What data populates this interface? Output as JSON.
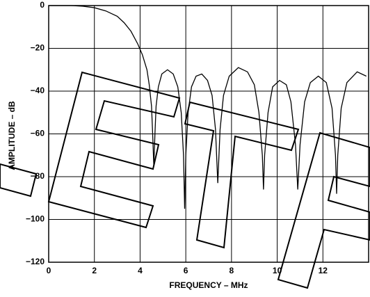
{
  "chart_data": {
    "type": "line",
    "x_label": "FREQUENCY – MHz",
    "y_label": "AMPLITUDE – dB",
    "xlim": [
      0,
      14
    ],
    "ylim": [
      -120,
      0
    ],
    "xticks": [
      0,
      2,
      4,
      6,
      8,
      10,
      12
    ],
    "yticks": [
      {
        "value": -120,
        "label": "−120"
      },
      {
        "value": -100,
        "label": "−100"
      },
      {
        "value": -80,
        "label": "−80"
      },
      {
        "value": -60,
        "label": "−60"
      },
      {
        "value": -40,
        "label": "−40"
      },
      {
        "value": -20,
        "label": "−20"
      },
      0
    ],
    "grid": true,
    "series": [
      {
        "color": "#000000",
        "x": [
          0,
          0.5,
          1.0,
          1.5,
          2.0,
          2.5,
          3.0,
          3.3,
          3.6,
          3.9,
          4.1,
          4.3,
          4.4,
          4.5,
          4.55,
          4.6,
          4.65,
          4.7,
          4.8,
          4.95,
          5.2,
          5.45,
          5.65,
          5.8,
          5.9,
          5.95,
          6.0,
          6.1,
          6.25,
          6.45,
          6.7,
          6.95,
          7.15,
          7.3,
          7.4,
          7.5,
          7.65,
          7.9,
          8.3,
          8.7,
          9.0,
          9.2,
          9.35,
          9.4,
          9.45,
          9.6,
          9.8,
          10.1,
          10.4,
          10.6,
          10.8,
          10.9,
          11.0,
          11.2,
          11.45,
          11.8,
          12.15,
          12.4,
          12.55,
          12.6,
          12.65,
          12.8,
          13.05,
          13.5,
          13.9
        ],
        "values": [
          0,
          0,
          0,
          -0.3,
          -1,
          -2.5,
          -5,
          -8,
          -12,
          -18,
          -23,
          -30,
          -37,
          -47,
          -60,
          -75,
          -60,
          -47,
          -38,
          -32,
          -30,
          -32,
          -38,
          -50,
          -70,
          -95,
          -70,
          -50,
          -38,
          -33,
          -32,
          -35,
          -42,
          -58,
          -83,
          -58,
          -42,
          -33,
          -29,
          -31,
          -37,
          -50,
          -70,
          -86,
          -70,
          -50,
          -38,
          -35,
          -37,
          -45,
          -65,
          -86,
          -65,
          -45,
          -36,
          -33,
          -36,
          -48,
          -70,
          -88,
          -70,
          -48,
          -36,
          -31,
          -33
        ]
      }
    ]
  }
}
